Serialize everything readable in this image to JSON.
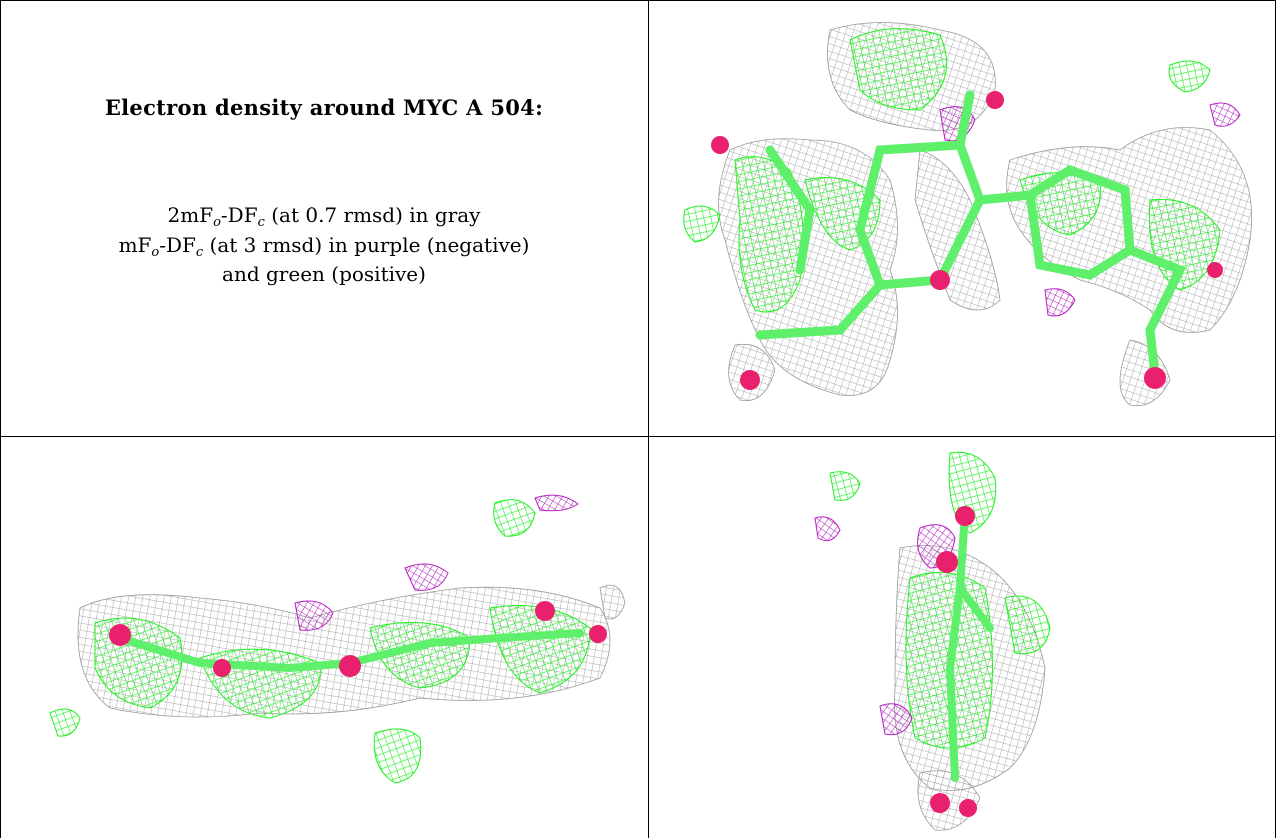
{
  "caption": {
    "title": "Electron density around MYC A 504:",
    "line1": {
      "prefix": "2mF",
      "sub1": "o",
      "mid": "-DF",
      "sub2": "c",
      "suffix": " (at 0.7 rmsd) in gray"
    },
    "line2": {
      "prefix": "mF",
      "sub1": "o",
      "mid": "-DF",
      "sub2": "c",
      "suffix": " (at 3 rmsd) in purple (negative)"
    },
    "line3": "and green (positive)"
  },
  "colors": {
    "mesh_2fofc": "#a9a9a9",
    "mesh_positive": "#22f022",
    "mesh_negative": "#b522c0",
    "carbon_stick": "#5ef06a",
    "oxygen_atom": "#e8206e"
  },
  "panels": [
    {
      "view": "top"
    },
    {
      "view": "side"
    },
    {
      "view": "end-on"
    }
  ]
}
